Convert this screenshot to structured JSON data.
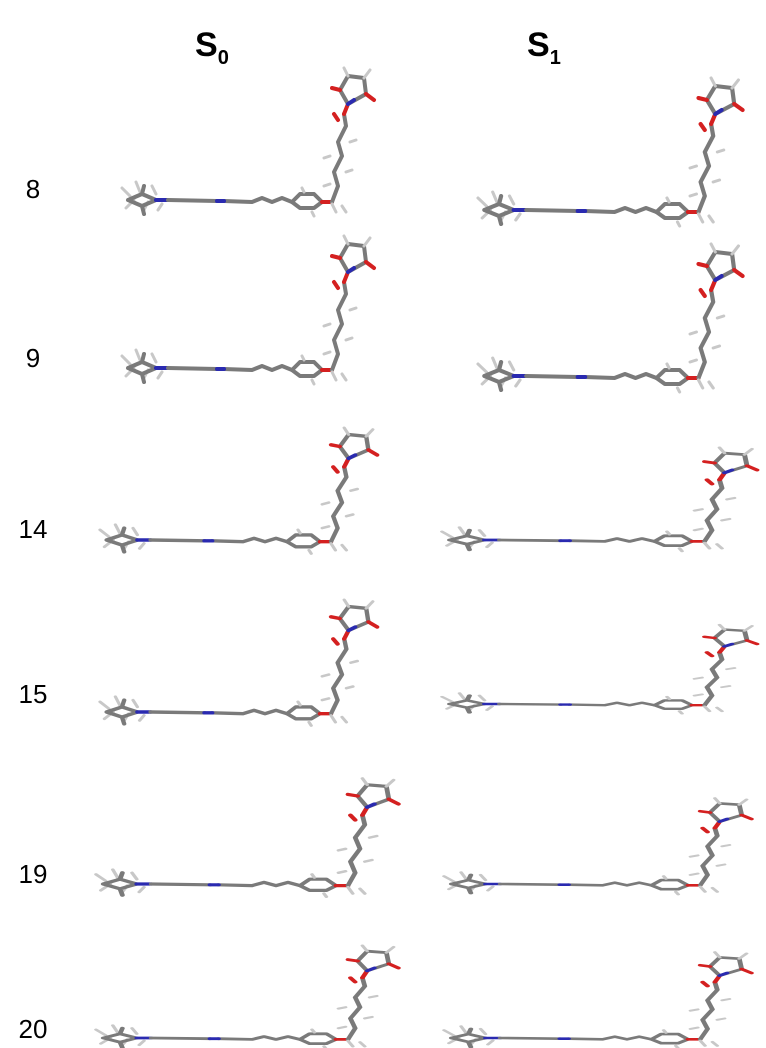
{
  "columns": [
    {
      "main": "S",
      "sub": "0"
    },
    {
      "main": "S",
      "sub": "1"
    }
  ],
  "rows": [
    {
      "label": "8"
    },
    {
      "label": "9"
    },
    {
      "label": "14"
    },
    {
      "label": "15"
    },
    {
      "label": "19"
    },
    {
      "label": "20"
    }
  ]
}
